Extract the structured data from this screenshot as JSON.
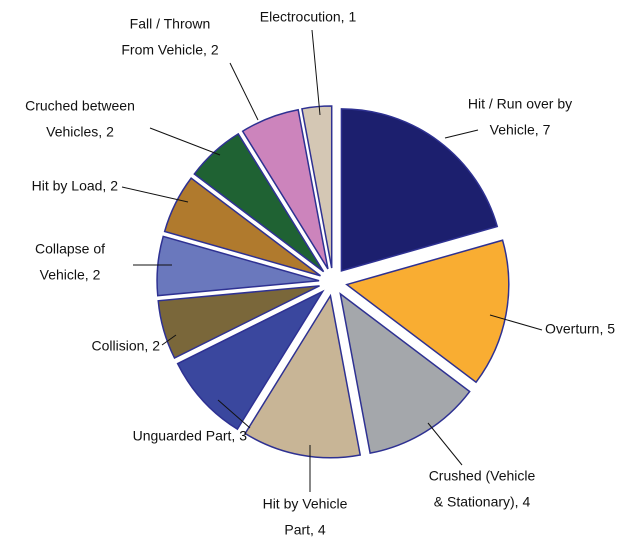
{
  "chart_data": {
    "type": "pie",
    "labels": [
      [
        "Hit / Run over by",
        "Vehicle, 7"
      ],
      [
        "Overturn, 5"
      ],
      [
        "Crushed (Vehicle",
        "& Stationary), 4"
      ],
      [
        "Hit by Vehicle",
        "Part, 4"
      ],
      [
        "Unguarded Part, 3"
      ],
      [
        "Collision, 2"
      ],
      [
        "Collapse of",
        "Vehicle, 2"
      ],
      [
        "Hit by Load, 2"
      ],
      [
        "Cruched between",
        "Vehicles, 2"
      ],
      [
        "Fall / Thrown",
        "From Vehicle, 2"
      ],
      [
        "Electrocution, 1"
      ]
    ],
    "values": [
      7,
      5,
      4,
      4,
      3,
      2,
      2,
      2,
      2,
      2,
      1
    ],
    "colors": [
      "#1c1f6e",
      "#f9ad32",
      "#a4a7ab",
      "#c8b596",
      "#3a479e",
      "#7a673a",
      "#6a78bd",
      "#b07a2d",
      "#1f6233",
      "#cc84bc",
      "#d4c7b4"
    ]
  }
}
